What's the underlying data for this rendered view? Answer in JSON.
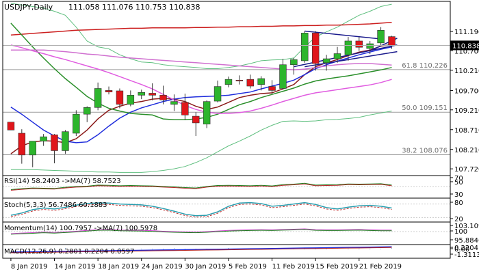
{
  "header": {
    "symbol": "USDJPY,Daily",
    "ohlc": "111.058 111.076 110.753 110.838"
  },
  "colors": {
    "bull": "#2db52d",
    "bear": "#e0161b",
    "current_price_bg": "#000000",
    "fib_line": "#9a9a9a",
    "ma_red": "#cc1f1f",
    "ma_dark_red": "#8b1a1a",
    "ma_blue": "#1f2ddc",
    "ma_green": "#2a8f2a",
    "ma_magenta": "#e05ce0",
    "ma_violet": "#d070d0",
    "bb_band": "#5fbf7f",
    "trend_navy": "#1a1a8c"
  },
  "x_labels": [
    "8 Jan 2019",
    "14 Jan 2019",
    "18 Jan 2019",
    "24 Jan 2019",
    "30 Jan 2019",
    "5 Feb 2019",
    "11 Feb 2019",
    "15 Feb 2019",
    "21 Feb 2019"
  ],
  "fib_levels": [
    {
      "label": "61.8 110.226",
      "value": 110.226
    },
    {
      "label": "50.0 109.151",
      "value": 109.151
    },
    {
      "label": "38.2 108.076",
      "value": 108.076
    }
  ],
  "current_price": "110.838",
  "panels": {
    "rsi": {
      "label": "RSI(14) 58.2403 ->MA(7) 58.7523",
      "ticks": [
        "70",
        "50",
        "30"
      ]
    },
    "stoch": {
      "label": "Stoch(5,3,3) 56.7486 60.1883",
      "ticks": [
        "80",
        "20"
      ]
    },
    "momentum": {
      "label": "Momentum(14) 100.7957 ->MA(7) 100.5978",
      "ticks": [
        "103.1098",
        "100",
        "95.8846"
      ]
    },
    "macd": {
      "label": "MACD(12,26,9) 0.2801 0.2204 0.0597",
      "ticks": [
        "0.2204",
        "0.00",
        "-1.3113"
      ]
    }
  },
  "chart_data": {
    "type": "candlestick",
    "title": "USDJPY,Daily",
    "ylim": [
      107.55,
      111.95
    ],
    "y_ticks": [
      "111.190",
      "110.700",
      "110.210",
      "109.700",
      "109.210",
      "108.710",
      "108.210",
      "107.720"
    ],
    "candles": [
      {
        "o": 108.9,
        "h": 108.9,
        "l": 108.7,
        "c": 108.7
      },
      {
        "o": 108.62,
        "h": 108.72,
        "l": 107.85,
        "c": 108.07
      },
      {
        "o": 108.07,
        "h": 108.4,
        "l": 107.76,
        "c": 108.42
      },
      {
        "o": 108.42,
        "h": 108.6,
        "l": 108.3,
        "c": 108.53
      },
      {
        "o": 108.58,
        "h": 108.6,
        "l": 107.86,
        "c": 108.18
      },
      {
        "o": 108.18,
        "h": 108.7,
        "l": 108.1,
        "c": 108.66
      },
      {
        "o": 108.62,
        "h": 109.2,
        "l": 108.55,
        "c": 109.1
      },
      {
        "o": 109.1,
        "h": 109.3,
        "l": 108.9,
        "c": 109.27
      },
      {
        "o": 109.27,
        "h": 109.9,
        "l": 109.2,
        "c": 109.75
      },
      {
        "o": 109.7,
        "h": 109.8,
        "l": 109.6,
        "c": 109.66
      },
      {
        "o": 109.69,
        "h": 109.75,
        "l": 109.25,
        "c": 109.35
      },
      {
        "o": 109.35,
        "h": 109.7,
        "l": 109.3,
        "c": 109.58
      },
      {
        "o": 109.58,
        "h": 109.72,
        "l": 109.48,
        "c": 109.65
      },
      {
        "o": 109.63,
        "h": 109.88,
        "l": 109.45,
        "c": 109.58
      },
      {
        "o": 109.58,
        "h": 109.82,
        "l": 109.35,
        "c": 109.46
      },
      {
        "o": 109.35,
        "h": 109.6,
        "l": 109.18,
        "c": 109.42
      },
      {
        "o": 109.4,
        "h": 109.62,
        "l": 108.95,
        "c": 109.08
      },
      {
        "o": 109.05,
        "h": 109.15,
        "l": 108.55,
        "c": 108.88
      },
      {
        "o": 108.85,
        "h": 109.45,
        "l": 108.75,
        "c": 109.42
      },
      {
        "o": 109.43,
        "h": 109.95,
        "l": 109.4,
        "c": 109.8
      },
      {
        "o": 109.85,
        "h": 110.05,
        "l": 109.78,
        "c": 109.98
      },
      {
        "o": 109.96,
        "h": 110.08,
        "l": 109.85,
        "c": 109.94
      },
      {
        "o": 109.98,
        "h": 110.1,
        "l": 109.75,
        "c": 109.81
      },
      {
        "o": 109.85,
        "h": 110.06,
        "l": 109.7,
        "c": 110.0
      },
      {
        "o": 109.8,
        "h": 109.96,
        "l": 109.62,
        "c": 109.7
      },
      {
        "o": 109.75,
        "h": 110.5,
        "l": 109.72,
        "c": 110.35
      },
      {
        "o": 110.35,
        "h": 110.52,
        "l": 110.1,
        "c": 110.48
      },
      {
        "o": 110.45,
        "h": 111.2,
        "l": 110.4,
        "c": 111.15
      },
      {
        "o": 111.15,
        "h": 111.2,
        "l": 110.2,
        "c": 110.38
      },
      {
        "o": 110.4,
        "h": 110.6,
        "l": 110.2,
        "c": 110.5
      },
      {
        "o": 110.5,
        "h": 110.8,
        "l": 110.4,
        "c": 110.63
      },
      {
        "o": 110.6,
        "h": 111.05,
        "l": 110.45,
        "c": 110.95
      },
      {
        "o": 110.95,
        "h": 111.05,
        "l": 110.7,
        "c": 110.79
      },
      {
        "o": 110.76,
        "h": 110.95,
        "l": 110.62,
        "c": 110.88
      },
      {
        "o": 110.9,
        "h": 111.3,
        "l": 110.82,
        "c": 111.22
      },
      {
        "o": 111.06,
        "h": 111.08,
        "l": 110.75,
        "c": 110.84
      }
    ],
    "series": [
      {
        "name": "",
        "values": [
          107.7,
          107.7,
          107.7,
          107.69,
          107.68,
          107.67,
          107.66,
          107.65,
          107.64,
          107.64,
          107.63,
          107.63,
          107.63,
          107.65,
          107.68,
          107.72,
          107.78,
          107.88,
          108.0,
          108.15,
          108.3,
          108.42,
          108.55,
          108.7,
          108.82,
          108.92,
          108.93,
          108.92,
          108.93,
          108.96,
          108.97,
          108.99,
          109.02,
          109.08,
          109.13,
          109.18
        ]
      },
      {
        "name": "",
        "values": [
          111.9,
          111.86,
          111.82,
          111.78,
          111.7,
          111.6,
          111.3,
          110.95,
          110.8,
          110.75,
          110.6,
          110.5,
          110.42,
          110.4,
          110.35,
          110.32,
          110.3,
          110.28,
          110.25,
          110.25,
          110.28,
          110.32,
          110.38,
          110.45,
          110.47,
          110.48,
          110.52,
          110.8,
          111.05,
          111.18,
          111.3,
          111.45,
          111.6,
          111.7,
          111.82,
          111.88
        ]
      },
      {
        "name": "",
        "values": [
          111.1,
          111.12,
          111.14,
          111.16,
          111.18,
          111.2,
          111.22,
          111.23,
          111.24,
          111.25,
          111.26,
          111.27,
          111.27,
          111.28,
          111.28,
          111.28,
          111.28,
          111.29,
          111.29,
          111.3,
          111.3,
          111.31,
          111.31,
          111.32,
          111.32,
          111.33,
          111.33,
          111.34,
          111.34,
          111.35,
          111.35,
          111.36,
          111.37,
          111.38,
          111.4,
          111.42
        ]
      },
      {
        "name": "",
        "values": [
          108.1,
          108.3,
          108.4,
          108.43,
          108.42,
          108.38,
          108.48,
          108.7,
          108.98,
          109.2,
          109.3,
          109.38,
          109.42,
          109.48,
          109.5,
          109.48,
          109.42,
          109.3,
          109.22,
          109.28,
          109.4,
          109.52,
          109.58,
          109.62,
          109.64,
          109.74,
          109.85,
          110.1,
          110.3,
          110.4,
          110.48,
          110.58,
          110.67,
          110.72,
          110.82,
          110.86
        ]
      },
      {
        "name": "",
        "values": [
          109.28,
          109.1,
          108.9,
          108.7,
          108.55,
          108.42,
          108.38,
          108.4,
          108.58,
          108.8,
          109.0,
          109.15,
          109.26,
          109.34,
          109.42,
          109.48,
          109.52,
          109.54,
          109.55,
          109.56,
          109.58,
          109.62,
          109.66,
          109.74,
          109.81,
          109.88,
          109.96,
          110.1,
          110.25,
          110.35,
          110.44,
          110.52,
          110.6,
          110.67,
          110.74,
          110.8
        ]
      },
      {
        "name": "",
        "values": [
          111.4,
          111.1,
          110.8,
          110.52,
          110.25,
          110.0,
          109.78,
          109.55,
          109.38,
          109.25,
          109.18,
          109.12,
          109.1,
          109.08,
          108.98,
          108.96,
          108.96,
          108.98,
          109.02,
          109.1,
          109.22,
          109.34,
          109.42,
          109.52,
          109.6,
          109.68,
          109.76,
          109.86,
          109.94,
          109.99,
          110.03,
          110.07,
          110.12,
          110.17,
          110.22,
          110.28
        ]
      },
      {
        "name": "",
        "values": [
          110.85,
          110.78,
          110.7,
          110.63,
          110.55,
          110.48,
          110.4,
          110.32,
          110.24,
          110.15,
          110.05,
          109.95,
          109.85,
          109.74,
          109.6,
          109.46,
          109.32,
          109.22,
          109.15,
          109.12,
          109.12,
          109.14,
          109.18,
          109.25,
          109.33,
          109.42,
          109.5,
          109.58,
          109.64,
          109.68,
          109.72,
          109.76,
          109.8,
          109.84,
          109.9,
          109.98
        ]
      },
      {
        "name": "",
        "values": [
          110.72,
          110.72,
          110.72,
          110.72,
          110.7,
          110.68,
          110.65,
          110.62,
          110.6,
          110.57,
          110.54,
          110.52,
          110.5,
          110.48,
          110.46,
          110.44,
          110.42,
          110.4,
          110.38,
          110.36,
          110.34,
          110.32,
          110.3,
          110.28,
          110.26,
          110.24,
          110.22,
          110.24,
          110.28,
          110.32,
          110.35,
          110.37,
          110.38,
          110.38,
          110.36,
          110.34
        ]
      }
    ],
    "trendlines": [
      {
        "x1": 27,
        "y1": 111.2,
        "x2": 34,
        "y2": 111.0
      },
      {
        "x1": 27,
        "y1": 110.3,
        "x2": 35.5,
        "y2": 110.68
      },
      {
        "x1": 26,
        "y1": 110.3,
        "x2": 35.5,
        "y2": 110.85
      },
      {
        "x1": 33,
        "y1": 110.7,
        "x2": 35.5,
        "y2": 111.02
      }
    ]
  }
}
